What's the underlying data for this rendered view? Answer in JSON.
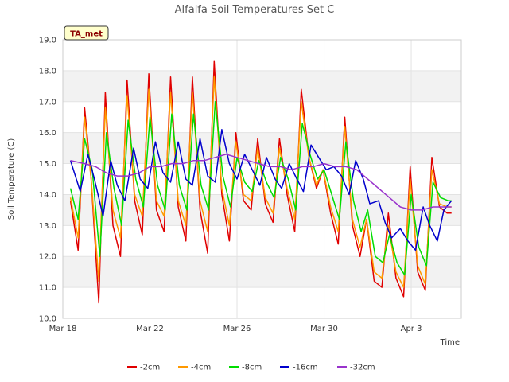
{
  "chart_data": {
    "type": "line",
    "title": "Alfalfa Soil Temperatures Set C",
    "xlabel": "Time",
    "ylabel": "Soil Temperature (C)",
    "badge": "TA_met",
    "ylim": [
      10.0,
      19.0
    ],
    "yticks": [
      "10.0",
      "11.0",
      "12.0",
      "13.0",
      "14.0",
      "15.0",
      "16.0",
      "17.0",
      "18.0",
      "19.0"
    ],
    "xlim_days": [
      0,
      18.3
    ],
    "xticks": [
      {
        "label": "Mar 18",
        "day": 0
      },
      {
        "label": "Mar 22",
        "day": 4
      },
      {
        "label": "Mar 26",
        "day": 8
      },
      {
        "label": "Mar 30",
        "day": 12
      },
      {
        "label": "Apr 3",
        "day": 16
      }
    ],
    "grid": true,
    "legend": "bottom",
    "series": [
      {
        "name": "-2cm",
        "color": "#e00000",
        "x_days": [
          0.35,
          0.7,
          1.0,
          1.3,
          1.65,
          1.95,
          2.3,
          2.65,
          2.95,
          3.3,
          3.65,
          3.95,
          4.3,
          4.65,
          4.95,
          5.3,
          5.65,
          5.95,
          6.3,
          6.65,
          6.95,
          7.3,
          7.65,
          7.95,
          8.3,
          8.65,
          8.95,
          9.3,
          9.65,
          9.95,
          10.3,
          10.65,
          10.95,
          11.3,
          11.65,
          11.95,
          12.3,
          12.65,
          12.95,
          13.3,
          13.65,
          13.95,
          14.3,
          14.65,
          14.95,
          15.3,
          15.65,
          15.95,
          16.3,
          16.65,
          16.95,
          17.3,
          17.65,
          17.85
        ],
        "values": [
          13.8,
          12.2,
          16.8,
          14.5,
          10.5,
          17.3,
          13.0,
          12.0,
          17.7,
          13.8,
          12.7,
          17.9,
          13.5,
          12.8,
          17.8,
          13.6,
          12.5,
          17.8,
          13.5,
          12.1,
          18.3,
          14.0,
          12.5,
          16.0,
          13.8,
          13.5,
          15.8,
          13.7,
          13.1,
          15.8,
          14.0,
          12.8,
          17.4,
          15.2,
          14.2,
          14.8,
          13.4,
          12.4,
          16.5,
          13.0,
          12.0,
          13.2,
          11.2,
          11.0,
          13.4,
          11.3,
          10.7,
          14.9,
          11.5,
          10.9,
          15.2,
          13.6,
          13.4,
          13.4
        ]
      },
      {
        "name": "-4cm",
        "color": "#ff9900",
        "x_days": [
          0.35,
          0.7,
          1.0,
          1.3,
          1.65,
          1.95,
          2.3,
          2.65,
          2.95,
          3.3,
          3.65,
          3.95,
          4.3,
          4.65,
          4.95,
          5.3,
          5.65,
          5.95,
          6.3,
          6.65,
          6.95,
          7.3,
          7.65,
          7.95,
          8.3,
          8.65,
          8.95,
          9.3,
          9.65,
          9.95,
          10.3,
          10.65,
          10.95,
          11.3,
          11.65,
          11.95,
          12.3,
          12.65,
          12.95,
          13.3,
          13.65,
          13.95,
          14.3,
          14.65,
          14.95,
          15.3,
          15.65,
          15.95,
          16.3,
          16.65,
          16.95,
          17.3,
          17.65,
          17.85
        ],
        "values": [
          13.9,
          12.6,
          16.5,
          14.5,
          11.2,
          16.8,
          13.5,
          12.6,
          17.2,
          14.0,
          13.3,
          17.4,
          13.8,
          13.3,
          17.3,
          13.8,
          13.0,
          17.3,
          13.8,
          12.8,
          17.8,
          14.2,
          13.0,
          15.7,
          14.0,
          13.8,
          15.5,
          13.9,
          13.4,
          15.5,
          14.2,
          13.2,
          17.0,
          15.2,
          14.3,
          14.8,
          13.6,
          12.8,
          16.2,
          13.2,
          12.3,
          13.2,
          11.5,
          11.3,
          13.0,
          11.5,
          11.0,
          14.5,
          11.7,
          11.1,
          14.8,
          13.7,
          13.6,
          13.6
        ]
      },
      {
        "name": "-8cm",
        "color": "#00dd00",
        "x_days": [
          0.35,
          0.7,
          1.0,
          1.35,
          1.7,
          2.0,
          2.35,
          2.7,
          3.0,
          3.35,
          3.7,
          4.0,
          4.35,
          4.7,
          5.0,
          5.35,
          5.7,
          6.0,
          6.35,
          6.7,
          7.0,
          7.35,
          7.7,
          8.0,
          8.35,
          8.7,
          9.0,
          9.35,
          9.7,
          10.0,
          10.35,
          10.7,
          11.0,
          11.35,
          11.7,
          12.0,
          12.35,
          12.7,
          13.0,
          13.35,
          13.7,
          14.0,
          14.35,
          14.7,
          15.0,
          15.35,
          15.7,
          16.0,
          16.35,
          16.7,
          17.0,
          17.35,
          17.7,
          17.85
        ],
        "values": [
          14.2,
          13.2,
          15.8,
          14.8,
          12.0,
          16.0,
          14.2,
          13.0,
          16.4,
          14.5,
          13.6,
          16.5,
          14.3,
          13.5,
          16.6,
          14.3,
          13.5,
          16.6,
          14.3,
          13.5,
          17.0,
          14.6,
          13.6,
          15.2,
          14.4,
          14.1,
          15.1,
          14.4,
          13.9,
          15.2,
          14.5,
          13.5,
          16.3,
          15.3,
          14.5,
          14.8,
          14.0,
          13.2,
          15.7,
          13.8,
          12.8,
          13.5,
          12.0,
          11.8,
          12.7,
          11.8,
          11.4,
          14.0,
          12.3,
          11.7,
          14.4,
          13.9,
          13.8,
          13.8
        ]
      },
      {
        "name": "-16cm",
        "color": "#0000cc",
        "x_days": [
          0.35,
          0.8,
          1.15,
          1.45,
          1.85,
          2.2,
          2.5,
          2.85,
          3.25,
          3.55,
          3.9,
          4.25,
          4.6,
          4.95,
          5.3,
          5.65,
          5.95,
          6.3,
          6.65,
          7.0,
          7.3,
          7.65,
          8.0,
          8.35,
          8.7,
          9.05,
          9.35,
          9.75,
          10.05,
          10.4,
          10.75,
          11.05,
          11.4,
          11.75,
          12.1,
          12.45,
          12.8,
          13.15,
          13.45,
          13.8,
          14.1,
          14.5,
          14.8,
          15.1,
          15.5,
          15.85,
          16.2,
          16.55,
          16.85,
          17.2,
          17.5,
          17.85
        ],
        "values": [
          15.1,
          14.1,
          15.3,
          14.5,
          13.3,
          15.1,
          14.3,
          13.8,
          15.5,
          14.5,
          14.2,
          15.7,
          14.7,
          14.4,
          15.7,
          14.5,
          14.3,
          15.8,
          14.6,
          14.4,
          16.1,
          15.0,
          14.5,
          15.3,
          14.8,
          14.3,
          15.2,
          14.5,
          14.2,
          15.0,
          14.5,
          14.1,
          15.6,
          15.2,
          14.8,
          14.9,
          14.6,
          14.0,
          15.1,
          14.5,
          13.7,
          13.8,
          13.1,
          12.6,
          12.9,
          12.5,
          12.2,
          13.6,
          13.0,
          12.5,
          13.5,
          13.8
        ]
      },
      {
        "name": "-32cm",
        "color": "#9933cc",
        "x_days": [
          0.35,
          1.0,
          1.5,
          2.0,
          2.5,
          3.0,
          3.5,
          4.0,
          4.5,
          5.0,
          5.5,
          6.0,
          6.5,
          7.0,
          7.5,
          8.0,
          8.5,
          9.0,
          9.5,
          10.0,
          10.5,
          11.0,
          11.5,
          12.0,
          12.5,
          13.0,
          13.5,
          14.0,
          14.5,
          15.0,
          15.5,
          16.0,
          16.5,
          17.0,
          17.5,
          17.85
        ],
        "values": [
          15.1,
          15.0,
          14.9,
          14.7,
          14.6,
          14.6,
          14.7,
          14.9,
          14.9,
          15.0,
          15.0,
          15.1,
          15.1,
          15.2,
          15.3,
          15.2,
          15.1,
          15.0,
          14.9,
          14.9,
          14.8,
          14.9,
          14.9,
          15.0,
          14.9,
          14.9,
          14.8,
          14.5,
          14.2,
          13.9,
          13.6,
          13.5,
          13.5,
          13.6,
          13.6,
          13.6
        ]
      }
    ]
  }
}
